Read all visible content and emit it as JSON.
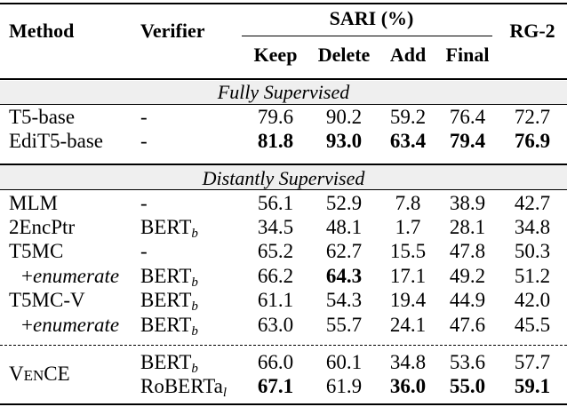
{
  "headers": {
    "method": "Method",
    "verifier": "Verifier",
    "sari": "SARI (%)",
    "keep": "Keep",
    "delete": "Delete",
    "add": "Add",
    "final": "Final",
    "rg2": "RG-2"
  },
  "sections": [
    {
      "title": "Fully Supervised",
      "rows": [
        {
          "method": "T5-base",
          "verifier": "-",
          "keep": "79.6",
          "delete": "90.2",
          "add": "59.2",
          "final": "76.4",
          "rg2": "72.7",
          "bold": []
        },
        {
          "method": "EdiT5-base",
          "verifier": "-",
          "keep": "81.8",
          "delete": "93.0",
          "add": "63.4",
          "final": "79.4",
          "rg2": "76.9",
          "bold": [
            "keep",
            "delete",
            "add",
            "final",
            "rg2"
          ]
        }
      ]
    },
    {
      "title": "Distantly Supervised",
      "rows": [
        {
          "method": "MLM",
          "verifier": "-",
          "keep": "56.1",
          "delete": "52.9",
          "add": "7.8",
          "final": "38.9",
          "rg2": "42.7",
          "bold": []
        },
        {
          "method": "2EncPtr",
          "verifier": "BERT",
          "verifier_sub": "b",
          "keep": "34.5",
          "delete": "48.1",
          "add": "1.7",
          "final": "28.1",
          "rg2": "34.8",
          "bold": []
        },
        {
          "method": "T5MC",
          "verifier": "-",
          "keep": "65.2",
          "delete": "62.7",
          "add": "15.5",
          "final": "47.8",
          "rg2": "50.3",
          "bold": []
        },
        {
          "method_prefix": "+",
          "method": "enumerate",
          "method_italic": true,
          "verifier": "BERT",
          "verifier_sub": "b",
          "keep": "66.2",
          "delete": "64.3",
          "add": "17.1",
          "final": "49.2",
          "rg2": "51.2",
          "bold": [
            "delete"
          ]
        },
        {
          "method": "T5MC-V",
          "verifier": "BERT",
          "verifier_sub": "b",
          "keep": "61.1",
          "delete": "54.3",
          "add": "19.4",
          "final": "44.9",
          "rg2": "42.0",
          "bold": []
        },
        {
          "method_prefix": "+",
          "method": "enumerate",
          "method_italic": true,
          "verifier": "BERT",
          "verifier_sub": "b",
          "keep": "63.0",
          "delete": "55.7",
          "add": "24.1",
          "final": "47.6",
          "rg2": "45.5",
          "bold": []
        }
      ]
    }
  ],
  "vence": {
    "method_cap1": "V",
    "method_small": "EN",
    "method_cap2": "CE",
    "rows": [
      {
        "verifier": "BERT",
        "verifier_sub": "b",
        "keep": "66.0",
        "delete": "60.1",
        "add": "34.8",
        "final": "53.6",
        "rg2": "57.7",
        "bold": []
      },
      {
        "verifier": "RoBERTa",
        "verifier_sub": "l",
        "keep": "67.1",
        "delete": "61.9",
        "add": "36.0",
        "final": "55.0",
        "rg2": "59.1",
        "bold": [
          "keep",
          "add",
          "final",
          "rg2"
        ]
      }
    ]
  }
}
